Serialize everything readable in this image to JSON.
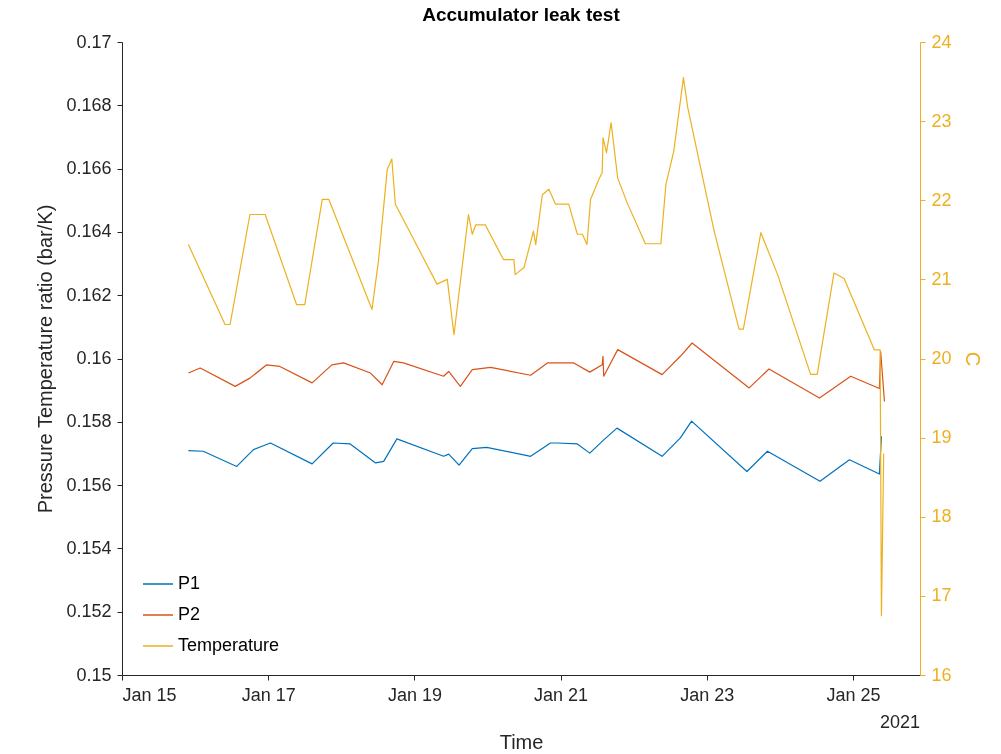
{
  "chart_data": {
    "type": "line",
    "title": "Accumulator leak test",
    "xlabel": "Time",
    "ylabel": "Pressure Temperature ratio (bar/K)",
    "y2label": "C",
    "annotations": [
      "2021"
    ],
    "xlim": [
      "2021-01-15",
      "2021-01-25T22:00"
    ],
    "xticks": [
      {
        "value": "2021-01-15",
        "label": "Jan 15"
      },
      {
        "value": "2021-01-17",
        "label": "Jan 17"
      },
      {
        "value": "2021-01-19",
        "label": "Jan 19"
      },
      {
        "value": "2021-01-21",
        "label": "Jan 21"
      },
      {
        "value": "2021-01-23",
        "label": "Jan 23"
      },
      {
        "value": "2021-01-25",
        "label": "Jan 25"
      }
    ],
    "ylim": [
      0.15,
      0.17
    ],
    "yticks": [
      0.15,
      0.152,
      0.154,
      0.156,
      0.158,
      0.16,
      0.162,
      0.164,
      0.166,
      0.168,
      0.17
    ],
    "y2lim": [
      16,
      24
    ],
    "y2ticks": [
      16,
      17,
      18,
      19,
      20,
      21,
      22,
      23,
      24
    ],
    "grid": false,
    "legend": "bottom left",
    "series": [
      {
        "name": "P1",
        "color": "#0072bd",
        "x": [
          "2021-01-15T21:48",
          "2021-01-16T02:40",
          "2021-01-16T13:40",
          "2021-01-16T19:10",
          "2021-01-17T00:45",
          "2021-01-17T14:25",
          "2021-01-17T21:20",
          "2021-01-18T02:55",
          "2021-01-18T11:15",
          "2021-01-18T13:55",
          "2021-01-18T18:15",
          "2021-01-19T09:35",
          "2021-01-19T11:15",
          "2021-01-19T14:40",
          "2021-01-19T19:00",
          "2021-01-19T23:45",
          "2021-01-20T14:10",
          "2021-01-20T20:40",
          "2021-01-20T22:50",
          "2021-01-21T05:30",
          "2021-01-21T09:35",
          "2021-01-21T14:10",
          "2021-01-21T18:30",
          "2021-01-22T09:20",
          "2021-01-22T15:20",
          "2021-01-22T19:00",
          "2021-01-23T13:10",
          "2021-01-23T19:55",
          "2021-01-24T13:10",
          "2021-01-24T22:50",
          "2021-01-25T08:40",
          "2021-01-25T09:20"
        ],
        "values": [
          0.15709,
          0.15707,
          0.15659,
          0.15712,
          0.15733,
          0.15667,
          0.15733,
          0.1573,
          0.1567,
          0.15675,
          0.15746,
          0.15691,
          0.15698,
          0.15663,
          0.15715,
          0.15719,
          0.15691,
          0.15733,
          0.15733,
          0.1573,
          0.15701,
          0.15743,
          0.1578,
          0.15691,
          0.15749,
          0.15802,
          0.15643,
          0.15707,
          0.15612,
          0.1568,
          0.15635,
          0.15754
        ]
      },
      {
        "name": "P2",
        "color": "#d95319",
        "x": [
          "2021-01-15T21:48",
          "2021-01-16T01:40",
          "2021-01-16T13:10",
          "2021-01-16T18:00",
          "2021-01-16T23:30",
          "2021-01-17T03:50",
          "2021-01-17T14:25",
          "2021-01-17T20:55",
          "2021-01-18T00:45",
          "2021-01-18T09:35",
          "2021-01-18T13:25",
          "2021-01-18T17:15",
          "2021-01-18T20:25",
          "2021-01-19T09:35",
          "2021-01-19T11:15",
          "2021-01-19T15:05",
          "2021-01-19T19:00",
          "2021-01-20T01:00",
          "2021-01-20T14:10",
          "2021-01-20T19:40",
          "2021-01-21T04:20",
          "2021-01-21T09:35",
          "2021-01-21T13:40",
          "2021-01-21T13:55",
          "2021-01-21T14:10",
          "2021-01-21T18:45",
          "2021-01-22T09:20",
          "2021-01-22T15:20",
          "2021-01-22T19:10",
          "2021-01-23T13:55",
          "2021-01-23T20:25",
          "2021-01-24T13:00",
          "2021-01-24T23:15",
          "2021-01-25T08:40",
          "2021-01-25T09:05",
          "2021-01-25T10:20"
        ],
        "values": [
          0.15954,
          0.1597,
          0.15912,
          0.15938,
          0.1598,
          0.15975,
          0.15923,
          0.1598,
          0.15986,
          0.15954,
          0.15917,
          0.15991,
          0.15986,
          0.15944,
          0.15959,
          0.15912,
          0.15965,
          0.15972,
          0.15947,
          0.15986,
          0.15986,
          0.15957,
          0.1598,
          0.16007,
          0.15944,
          0.16028,
          0.15949,
          0.16007,
          0.16049,
          0.15907,
          0.15967,
          0.15875,
          0.15944,
          0.15905,
          0.16022,
          0.15864
        ]
      },
      {
        "name": "Temperature",
        "color": "#edb120",
        "axis": "y2",
        "x": [
          "2021-01-15T21:48",
          "2021-01-16T09:50",
          "2021-01-16T11:30",
          "2021-01-16T18:00",
          "2021-01-16T23:00",
          "2021-01-17T09:20",
          "2021-01-17T12:00",
          "2021-01-17T17:45",
          "2021-01-17T19:55",
          "2021-01-18T10:05",
          "2021-01-18T12:15",
          "2021-01-18T15:05",
          "2021-01-18T16:35",
          "2021-01-18T17:45",
          "2021-01-19T07:25",
          "2021-01-19T10:48",
          "2021-01-19T13:00",
          "2021-01-19T17:45",
          "2021-01-19T19:00",
          "2021-01-19T20:10",
          "2021-01-19T23:15",
          "2021-01-20T05:15",
          "2021-01-20T08:40",
          "2021-01-20T09:05",
          "2021-01-20T12:00",
          "2021-01-20T15:05",
          "2021-01-20T15:50",
          "2021-01-20T18:00",
          "2021-01-20T20:10",
          "2021-01-20T22:20",
          "2021-01-21T02:40",
          "2021-01-21T05:30",
          "2021-01-21T07:10",
          "2021-01-21T08:40",
          "2021-01-21T09:50",
          "2021-01-21T12:30",
          "2021-01-21T13:40",
          "2021-01-21T13:55",
          "2021-01-21T15:05",
          "2021-01-21T16:35",
          "2021-01-21T18:45",
          "2021-01-21T21:50",
          "2021-01-22T03:50",
          "2021-01-22T08:55",
          "2021-01-22T10:35",
          "2021-01-22T13:10",
          "2021-01-22T16:20",
          "2021-01-22T17:45",
          "2021-01-23T02:25",
          "2021-01-23T10:35",
          "2021-01-23T12:00",
          "2021-01-23T17:45",
          "2021-01-23T23:15",
          "2021-01-24T10:05",
          "2021-01-24T12:15",
          "2021-01-24T17:45",
          "2021-01-24T21:05",
          "2021-01-25T07:00",
          "2021-01-25T08:55",
          "2021-01-25T09:20",
          "2021-01-25T10:05"
        ],
        "values": [
          21.44,
          20.43,
          20.43,
          21.82,
          21.82,
          20.68,
          20.68,
          22.01,
          22.01,
          20.62,
          21.25,
          22.39,
          22.52,
          21.95,
          20.94,
          21.0,
          20.3,
          21.82,
          21.57,
          21.69,
          21.69,
          21.25,
          21.25,
          21.06,
          21.15,
          21.61,
          21.44,
          22.07,
          22.14,
          21.95,
          21.95,
          21.57,
          21.57,
          21.44,
          22.01,
          22.26,
          22.35,
          22.79,
          22.6,
          22.98,
          22.28,
          21.97,
          21.45,
          21.45,
          22.2,
          22.62,
          23.55,
          23.17,
          21.61,
          20.37,
          20.37,
          21.59,
          21.06,
          19.8,
          19.8,
          21.08,
          21.01,
          20.11,
          20.11,
          16.75,
          18.8
        ]
      }
    ]
  }
}
